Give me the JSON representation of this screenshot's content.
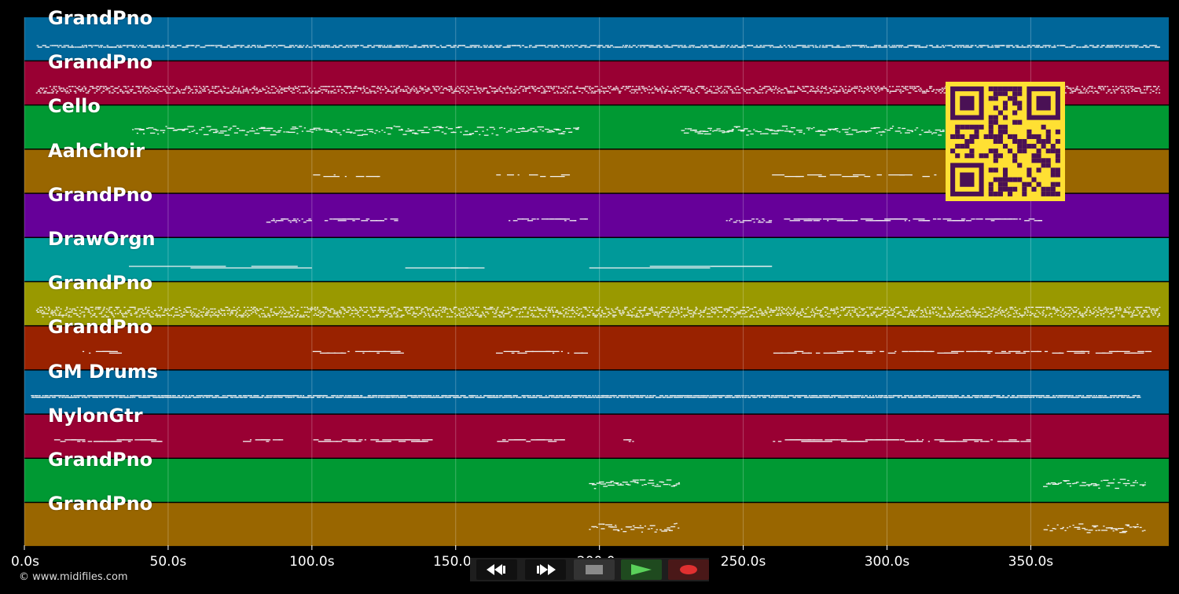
{
  "timeline": {
    "tick_labels": [
      "0.0s",
      "50.0s",
      "100.0s",
      "150.0s",
      "200.0s",
      "250.0s",
      "300.0s",
      "350.0s"
    ],
    "tick_seconds": [
      0,
      50,
      100,
      150,
      200,
      250,
      300,
      350
    ],
    "visible_range_seconds": [
      0,
      398
    ]
  },
  "tracks": [
    {
      "name": "GrandPno",
      "color": "#006699"
    },
    {
      "name": "GrandPno",
      "color": "#990033"
    },
    {
      "name": "Cello",
      "color": "#009933"
    },
    {
      "name": "AahChoir",
      "color": "#996600"
    },
    {
      "name": "GrandPno",
      "color": "#660099"
    },
    {
      "name": "DrawOrgn",
      "color": "#009999"
    },
    {
      "name": "GrandPno",
      "color": "#999900"
    },
    {
      "name": "GrandPno",
      "color": "#992200"
    },
    {
      "name": "GM Drums",
      "color": "#006699"
    },
    {
      "name": "NylonGtr",
      "color": "#990033"
    },
    {
      "name": "GrandPno",
      "color": "#009933"
    },
    {
      "name": "GrandPno",
      "color": "#996600"
    }
  ],
  "overlay": {
    "qr_icon": "qr-code-icon",
    "qr_colors": {
      "background": "#ffe033",
      "modules": "#4a1155"
    }
  },
  "footer": {
    "credit": "© www.midifiles.com"
  },
  "transport": {
    "buttons": [
      {
        "icon": "rewind-icon",
        "color": "#ffffff"
      },
      {
        "icon": "fast-forward-icon",
        "color": "#ffffff"
      },
      {
        "icon": "stop-icon",
        "color": "#8a8a8a"
      },
      {
        "icon": "play-icon",
        "color": "#5ad15a"
      },
      {
        "icon": "record-icon",
        "color": "#e03030"
      }
    ]
  }
}
